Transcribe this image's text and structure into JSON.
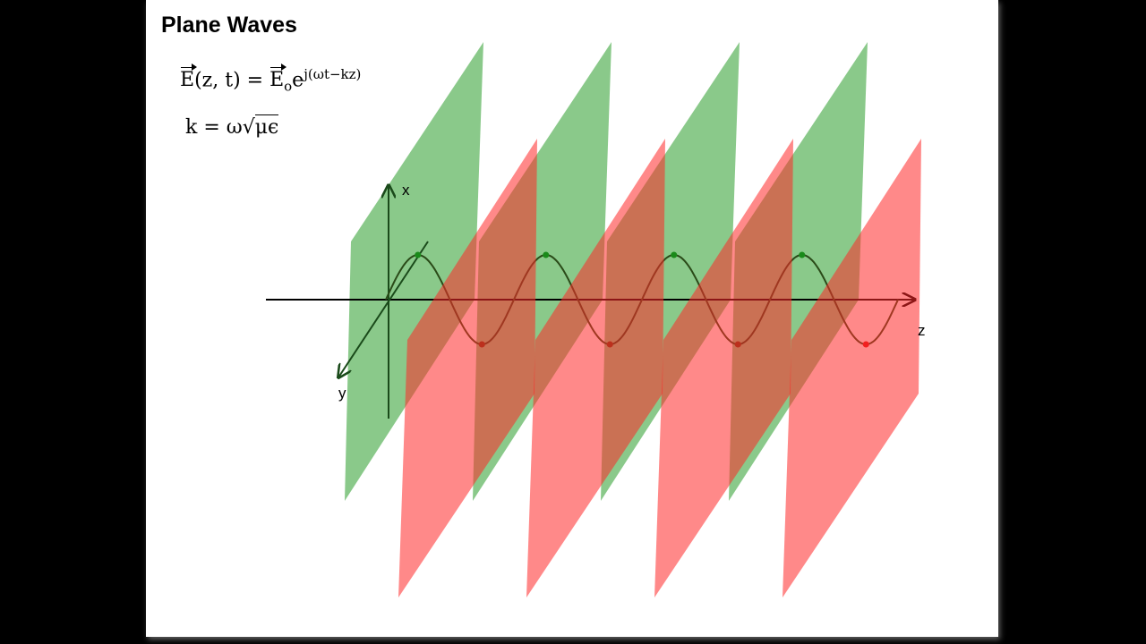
{
  "title": "Plane Waves",
  "equations": [
    {
      "lhs_symbol": "E",
      "lhs_args": "(z, t) = ",
      "rhs_symbol": "E",
      "rhs_subscript": "o",
      "rhs_base": "e",
      "rhs_exponent": "j(ωt−kz)"
    },
    {
      "lhs": "k = ω",
      "radical": "√",
      "radicand": "μϵ"
    }
  ],
  "axes": {
    "x": "x",
    "y": "y",
    "z": "z"
  }
}
